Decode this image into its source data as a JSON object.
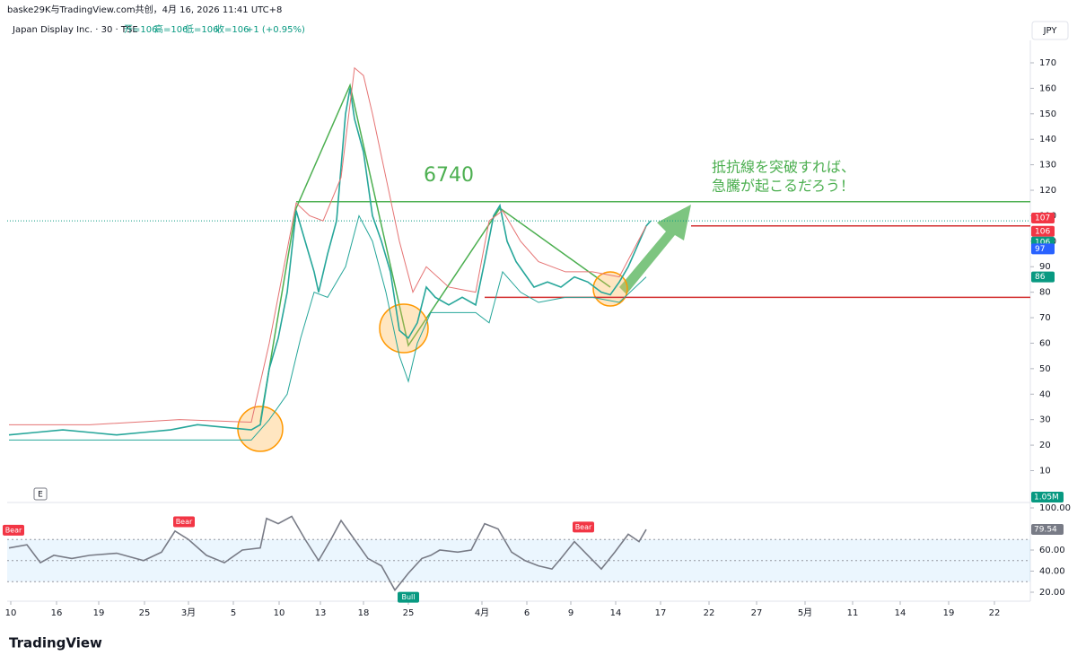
{
  "header": {
    "attribution": "baske29K与TradingView.com共创，4月 16, 2026 11:41 UTC+8",
    "symbol": "Japan Display Inc. · 30 · TSE",
    "open": "开=106",
    "high": "高=106",
    "low": "低=106",
    "close": "收=106",
    "change": "+1 (+0.95%)",
    "currency": "JPY"
  },
  "annotations": {
    "number": "6740",
    "comment_line1": "抵抗線を突破すれば、",
    "comment_line2": "急騰が起こるだろう！"
  },
  "footer": {
    "brand": "TradingView"
  },
  "chart_data": [
    {
      "type": "line",
      "xlim": [
        0,
        1140
      ],
      "ylim": [
        -2.5,
        178.8
      ],
      "xticks": [
        {
          "value": 4,
          "label": "10"
        },
        {
          "value": 55,
          "label": "16"
        },
        {
          "value": 102,
          "label": "19"
        },
        {
          "value": 153,
          "label": "25"
        },
        {
          "value": 202,
          "label": "3月"
        },
        {
          "value": 252,
          "label": "5"
        },
        {
          "value": 303,
          "label": "10"
        },
        {
          "value": 349,
          "label": "13"
        },
        {
          "value": 397,
          "label": "18"
        },
        {
          "value": 447,
          "label": "25"
        },
        {
          "value": 529,
          "label": "4月"
        },
        {
          "value": 579,
          "label": "6"
        },
        {
          "value": 628,
          "label": "9"
        },
        {
          "value": 678,
          "label": "14"
        },
        {
          "value": 728,
          "label": "17"
        },
        {
          "value": 782,
          "label": "22"
        },
        {
          "value": 835,
          "label": "27"
        },
        {
          "value": 889,
          "label": "5月"
        },
        {
          "value": 942,
          "label": "11"
        },
        {
          "value": 995,
          "label": "14"
        },
        {
          "value": 1049,
          "label": "19"
        },
        {
          "value": 1100,
          "label": "22"
        }
      ],
      "yticks": [
        10,
        20,
        30,
        40,
        50,
        60,
        70,
        80,
        90,
        100,
        110,
        120,
        130,
        140,
        150,
        160,
        170
      ],
      "series": [
        {
          "name": "Close",
          "color": "#26a69a",
          "x": [
            2,
            32,
            62,
            92,
            122,
            152,
            182,
            212,
            242,
            272,
            282,
            292,
            302,
            312,
            322,
            332,
            342,
            347,
            357,
            367,
            377,
            382,
            387,
            397,
            407,
            417,
            427,
            437,
            447,
            457,
            467,
            477,
            492,
            507,
            522,
            532,
            542,
            549,
            557,
            567,
            577,
            587,
            602,
            617,
            632,
            647,
            662,
            672,
            682,
            692,
            702,
            712,
            717
          ],
          "values": [
            24,
            25,
            26,
            25,
            24,
            25,
            26,
            28,
            27,
            26,
            28,
            50,
            62,
            80,
            112,
            100,
            88,
            80,
            95,
            108,
            150,
            160,
            148,
            135,
            110,
            100,
            88,
            65,
            62,
            68,
            82,
            78,
            75,
            78,
            75,
            92,
            110,
            114,
            100,
            92,
            87,
            82,
            84,
            82,
            86,
            84,
            80,
            79,
            84,
            90,
            98,
            106,
            108
          ]
        },
        {
          "name": "Upper band",
          "color": "#e57373",
          "x": [
            2,
            92,
            192,
            272,
            292,
            322,
            337,
            352,
            372,
            387,
            397,
            407,
            422,
            437,
            452,
            467,
            492,
            522,
            537,
            552,
            572,
            592,
            622,
            652,
            682,
            712
          ],
          "values": [
            28,
            28,
            30,
            29,
            60,
            115,
            110,
            108,
            125,
            168,
            165,
            150,
            125,
            100,
            80,
            90,
            82,
            80,
            108,
            112,
            100,
            92,
            88,
            88,
            86,
            106
          ]
        },
        {
          "name": "Lower band",
          "color": "#26a69a",
          "x": [
            2,
            92,
            192,
            272,
            292,
            312,
            327,
            342,
            357,
            377,
            392,
            407,
            422,
            437,
            447,
            457,
            472,
            492,
            522,
            537,
            552,
            572,
            592,
            622,
            652,
            682,
            712
          ],
          "values": [
            22,
            22,
            22,
            22,
            30,
            40,
            62,
            80,
            78,
            90,
            110,
            100,
            80,
            55,
            45,
            60,
            72,
            72,
            72,
            68,
            88,
            80,
            76,
            78,
            78,
            76,
            86
          ]
        }
      ],
      "levels": [
        {
          "value": 115.5,
          "start": 322,
          "color": "#4caf50"
        },
        {
          "value": 106,
          "start": 762,
          "color": "#d32f2f"
        },
        {
          "value": 78,
          "start": 532,
          "color": "#d32f2f"
        }
      ],
      "price_tags": [
        {
          "value": 107,
          "color": "#f23645"
        },
        {
          "value": 106,
          "color": "#f23645"
        },
        {
          "value": 106,
          "color": "#089981"
        },
        {
          "value": 97,
          "color": "#2962ff"
        },
        {
          "value": 86,
          "color": "#089981"
        }
      ],
      "volume_tag": "1.05M",
      "grid": false
    },
    {
      "type": "line",
      "xlim": [
        0,
        1140
      ],
      "ylim": [
        11.5,
        105.1
      ],
      "yticks": [
        {
          "value": 20,
          "label": "20.00"
        },
        {
          "value": 40,
          "label": "40.00"
        },
        {
          "value": 60,
          "label": "60.00"
        },
        {
          "value": 100,
          "label": "100.00"
        }
      ],
      "overbought": 70,
      "middle": 50,
      "oversold": 30,
      "series": [
        {
          "name": "RSI",
          "color": "#787b86",
          "x": [
            2,
            22,
            37,
            52,
            72,
            92,
            122,
            152,
            172,
            187,
            202,
            222,
            242,
            262,
            282,
            289,
            302,
            317,
            332,
            347,
            362,
            372,
            387,
            402,
            417,
            432,
            447,
            462,
            472,
            482,
            502,
            517,
            532,
            547,
            562,
            577,
            592,
            607,
            617,
            632,
            647,
            662,
            677,
            692,
            704,
            712
          ],
          "values": [
            62,
            65,
            48,
            55,
            52,
            55,
            57,
            50,
            58,
            78,
            70,
            55,
            48,
            60,
            62,
            90,
            85,
            92,
            70,
            50,
            72,
            88,
            70,
            52,
            45,
            22,
            38,
            52,
            55,
            60,
            58,
            60,
            85,
            80,
            58,
            50,
            45,
            42,
            52,
            68,
            55,
            42,
            58,
            75,
            68,
            79.54
          ],
          "value_labels": {
            "45": "79.54"
          }
        }
      ],
      "signals": [
        {
          "label": "Bear",
          "x": 7,
          "value": 72
        },
        {
          "label": "Bear",
          "x": 197,
          "value": 80
        },
        {
          "label": "Bull",
          "x": 447,
          "value": 22
        },
        {
          "label": "Bear",
          "x": 642,
          "value": 75
        }
      ]
    }
  ]
}
